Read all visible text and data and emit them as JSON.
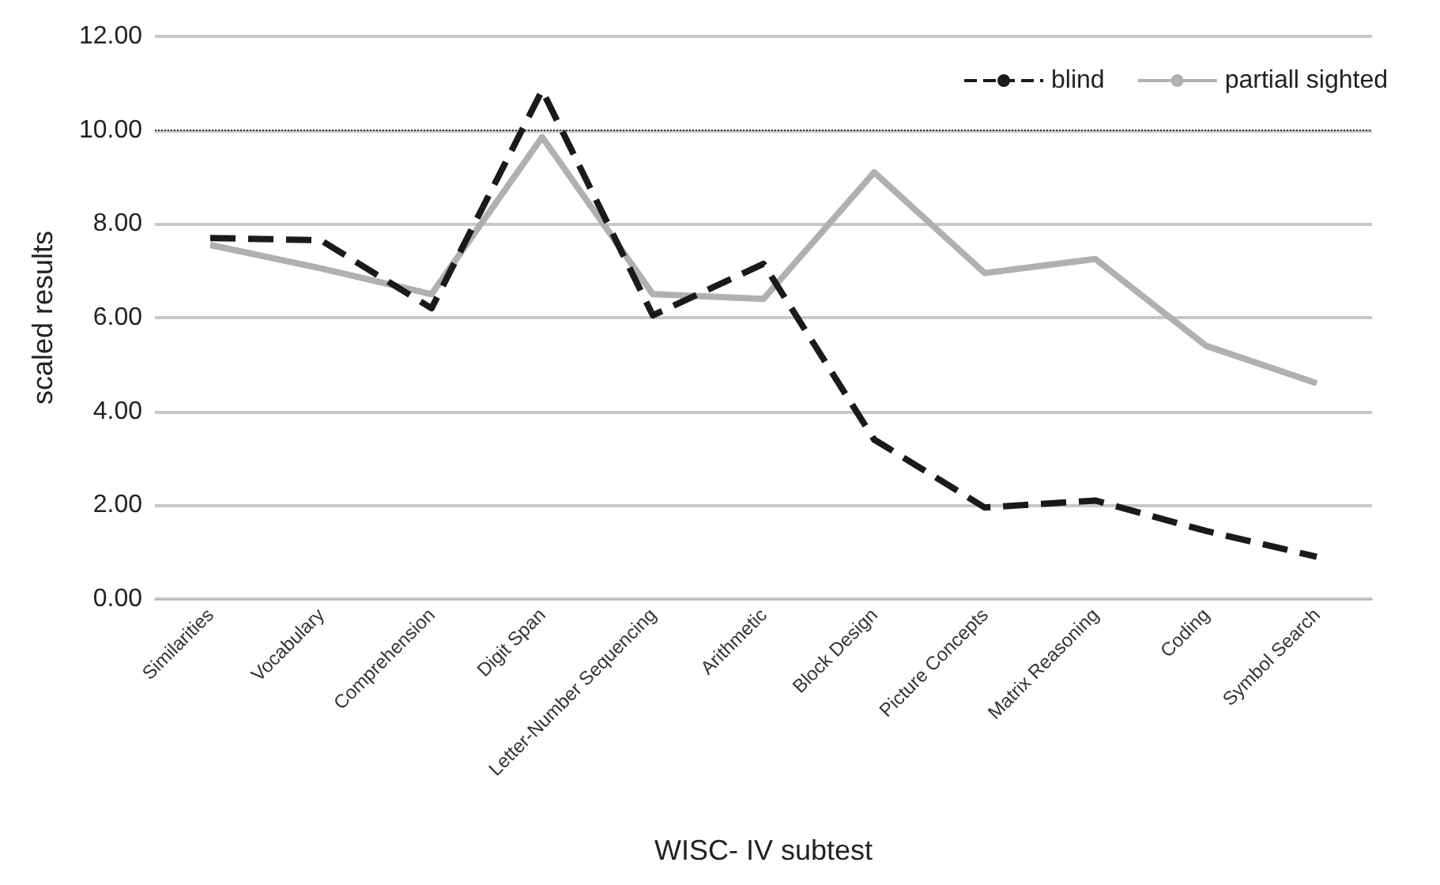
{
  "chart_data": {
    "type": "line",
    "xlabel": "WISC- IV subtest",
    "ylabel": "scaled results",
    "categories": [
      "Similarities",
      "Vocabulary",
      "Comprehension",
      "Digit Span",
      "Letter-Number Sequencing",
      "Arithmetic",
      "Block Design",
      "Picture Concepts",
      "Matrix Reasoning",
      "Coding",
      "Symbol Search"
    ],
    "series": [
      {
        "name": "blind",
        "color": "#1a1a1a",
        "line_style": "dashed",
        "values": [
          7.7,
          7.65,
          6.2,
          10.85,
          6.05,
          7.15,
          3.4,
          1.95,
          2.1,
          1.45,
          0.9
        ]
      },
      {
        "name": "partiall sighted",
        "color": "#b0b0b0",
        "line_style": "solid",
        "values": [
          7.55,
          7.05,
          6.5,
          9.85,
          6.5,
          6.4,
          9.1,
          6.95,
          7.25,
          5.4,
          4.6
        ]
      }
    ],
    "ylim": [
      0,
      12
    ],
    "yticks": [
      {
        "value": 0,
        "label": "0.00"
      },
      {
        "value": 2,
        "label": "2.00"
      },
      {
        "value": 4,
        "label": "4.00"
      },
      {
        "value": 6,
        "label": "6.00"
      },
      {
        "value": 8,
        "label": "8.00"
      },
      {
        "value": 10,
        "label": "10.00"
      },
      {
        "value": 12,
        "label": "12.00"
      }
    ],
    "grid": "y",
    "legend": "top right",
    "marker": "none",
    "ref_lines": [
      {
        "axis": "y",
        "value": 10,
        "label": null,
        "color": "#333333",
        "line_style": "dotted"
      }
    ]
  }
}
